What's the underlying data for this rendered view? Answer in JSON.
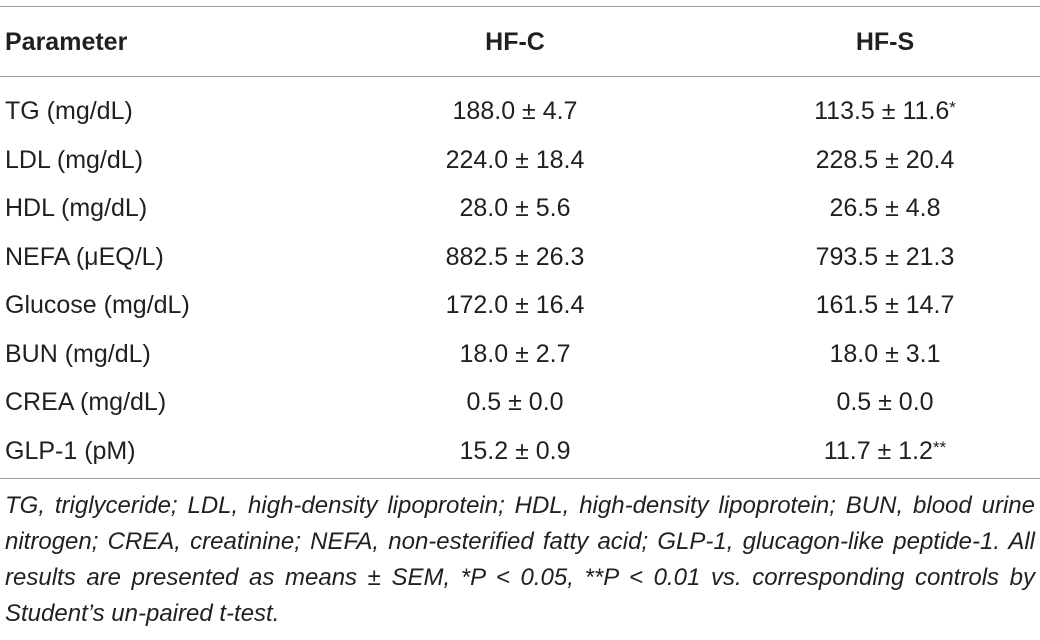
{
  "table": {
    "headers": {
      "parameter": "Parameter",
      "hfc": "HF-C",
      "hfs": "HF-S"
    },
    "rows": [
      {
        "parameter": "TG (mg/dL)",
        "hfc": "188.0 ± 4.7",
        "hfs": "113.5 ± 11.6",
        "hfs_mark": "*"
      },
      {
        "parameter": "LDL (mg/dL)",
        "hfc": "224.0 ± 18.4",
        "hfs": "228.5 ± 20.4",
        "hfs_mark": ""
      },
      {
        "parameter": "HDL (mg/dL)",
        "hfc": "28.0 ± 5.6",
        "hfs": "26.5 ± 4.8",
        "hfs_mark": ""
      },
      {
        "parameter": "NEFA (μEQ/L)",
        "hfc": "882.5 ± 26.3",
        "hfs": "793.5 ± 21.3",
        "hfs_mark": ""
      },
      {
        "parameter": "Glucose (mg/dL)",
        "hfc": "172.0 ± 16.4",
        "hfs": "161.5 ± 14.7",
        "hfs_mark": ""
      },
      {
        "parameter": "BUN (mg/dL)",
        "hfc": "18.0 ± 2.7",
        "hfs": "18.0 ± 3.1",
        "hfs_mark": ""
      },
      {
        "parameter": "CREA (mg/dL)",
        "hfc": "0.5 ± 0.0",
        "hfs": "0.5 ± 0.0",
        "hfs_mark": ""
      },
      {
        "parameter": "GLP-1 (pM)",
        "hfc": "15.2 ± 0.9",
        "hfs": "11.7 ± 1.2",
        "hfs_mark": "**"
      }
    ],
    "footnote": "TG, triglyceride; LDL, high-density lipoprotein; HDL, high-density lipoprotein; BUN, blood urine nitrogen; CREA, creatinine; NEFA, non-esterified fatty acid; GLP-1, glucagon-like peptide-1. All results are presented as means ± SEM, *P < 0.05, **P < 0.01 vs. corresponding controls by Student’s un-paired t-test."
  }
}
